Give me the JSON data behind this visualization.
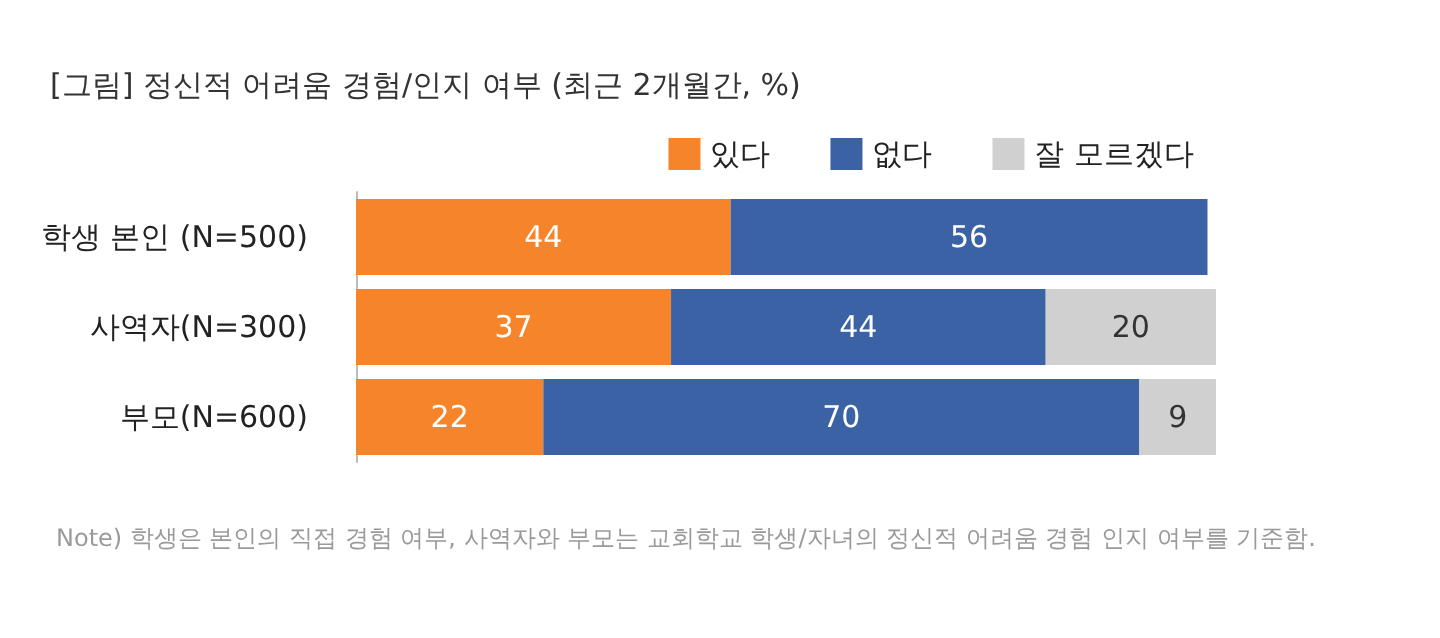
{
  "chart_data": {
    "type": "bar",
    "title": "[그림] 정신적 어려움 경험/인지 여부 (최근 2개월간, %)",
    "orientation": "horizontal",
    "stacked": true,
    "data_labels": true,
    "legend": "top right",
    "categories": [
      "학생 본인 (N=500)",
      "사역자(N=300)",
      "부모(N=600)"
    ],
    "series": [
      {
        "name": "있다",
        "color": "#f5842a",
        "values": [
          44,
          37,
          22
        ]
      },
      {
        "name": "없다",
        "color": "#3a62a4",
        "values": [
          56,
          44,
          70
        ]
      },
      {
        "name": "잘 모르겠다",
        "color": "#d0d0d0",
        "values": [
          null,
          20,
          9
        ]
      }
    ],
    "annotations": [
      "Note) 학생은 본인의 직접 경험 여부, 사역자와 부모는 교회학교 학생/자녀의 정신적 어려움 경험 인지 여부를 기준함."
    ]
  }
}
